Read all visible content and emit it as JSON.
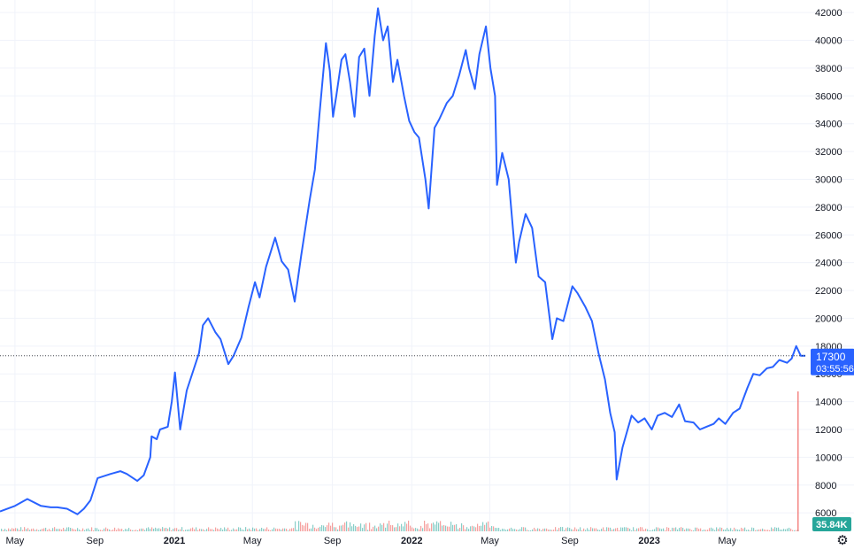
{
  "chart_data": {
    "type": "line",
    "title": "",
    "xlabel": "",
    "ylabel": "",
    "colors": {
      "line": "#2962ff",
      "grid": "#f0f3fa",
      "axis_text": "#131722",
      "volume_up": "#26a69a",
      "volume_down": "#ef5350",
      "volume_badge": "#26a69a"
    },
    "x_ticks": [
      {
        "label": "May",
        "date": "2020-05-01",
        "bold": false
      },
      {
        "label": "Sep",
        "date": "2020-09-01",
        "bold": false
      },
      {
        "label": "2021",
        "date": "2021-01-01",
        "bold": true
      },
      {
        "label": "May",
        "date": "2021-05-01",
        "bold": false
      },
      {
        "label": "Sep",
        "date": "2021-09-01",
        "bold": false
      },
      {
        "label": "2022",
        "date": "2022-01-01",
        "bold": true
      },
      {
        "label": "May",
        "date": "2022-05-01",
        "bold": false
      },
      {
        "label": "Sep",
        "date": "2022-09-01",
        "bold": false
      },
      {
        "label": "2023",
        "date": "2023-01-01",
        "bold": true
      },
      {
        "label": "May",
        "date": "2023-05-01",
        "bold": false
      }
    ],
    "x_range": [
      "2020-04-08",
      "2023-08-29"
    ],
    "y_ticks": [
      6000,
      8000,
      10000,
      12000,
      14000,
      16000,
      18000,
      20000,
      22000,
      24000,
      26000,
      28000,
      30000,
      32000,
      34000,
      36000,
      38000,
      40000,
      42000
    ],
    "ylim": [
      4800,
      42900
    ],
    "grid": true,
    "series": [
      {
        "x": [
          "2020-04-08",
          "2020-05-01",
          "2020-05-20",
          "2020-06-10",
          "2020-06-25",
          "2020-07-05",
          "2020-07-20",
          "2020-08-05",
          "2020-08-15",
          "2020-08-25",
          "2020-09-05",
          "2020-09-25",
          "2020-10-10",
          "2020-10-20",
          "2020-11-05",
          "2020-11-15",
          "2020-11-25",
          "2020-11-27",
          "2020-12-05",
          "2020-12-10",
          "2020-12-22",
          "2020-12-28",
          "2021-01-02",
          "2021-01-10",
          "2021-01-20",
          "2021-02-08",
          "2021-02-14",
          "2021-02-22",
          "2021-03-05",
          "2021-03-13",
          "2021-03-25",
          "2021-04-02",
          "2021-04-14",
          "2021-04-25",
          "2021-05-05",
          "2021-05-12",
          "2021-05-22",
          "2021-06-05",
          "2021-06-15",
          "2021-06-25",
          "2021-07-05",
          "2021-07-15",
          "2021-07-28",
          "2021-08-05",
          "2021-08-12",
          "2021-08-22",
          "2021-08-28",
          "2021-09-02",
          "2021-09-07",
          "2021-09-15",
          "2021-09-21",
          "2021-09-28",
          "2021-10-05",
          "2021-10-12",
          "2021-10-20",
          "2021-10-28",
          "2021-11-05",
          "2021-11-10",
          "2021-11-18",
          "2021-11-25",
          "2021-12-03",
          "2021-12-10",
          "2021-12-20",
          "2021-12-28",
          "2022-01-05",
          "2022-01-12",
          "2022-01-22",
          "2022-01-27",
          "2022-02-05",
          "2022-02-12",
          "2022-02-24",
          "2022-03-05",
          "2022-03-15",
          "2022-03-25",
          "2022-03-30",
          "2022-04-08",
          "2022-04-15",
          "2022-04-25",
          "2022-05-02",
          "2022-05-09",
          "2022-05-12",
          "2022-05-20",
          "2022-05-30",
          "2022-06-10",
          "2022-06-15",
          "2022-06-25",
          "2022-07-05",
          "2022-07-15",
          "2022-07-25",
          "2022-08-05",
          "2022-08-12",
          "2022-08-22",
          "2022-09-05",
          "2022-09-13",
          "2022-09-25",
          "2022-10-05",
          "2022-10-15",
          "2022-10-25",
          "2022-11-02",
          "2022-11-09",
          "2022-11-12",
          "2022-11-21",
          "2022-12-05",
          "2022-12-15",
          "2022-12-25",
          "2023-01-05",
          "2023-01-14",
          "2023-01-25",
          "2023-02-05",
          "2023-02-16",
          "2023-02-25",
          "2023-03-10",
          "2023-03-20",
          "2023-03-30",
          "2023-04-10",
          "2023-04-18",
          "2023-04-28",
          "2023-05-10",
          "2023-05-20",
          "2023-06-01",
          "2023-06-10",
          "2023-06-20",
          "2023-07-01",
          "2023-07-10",
          "2023-07-20",
          "2023-08-01",
          "2023-08-08",
          "2023-08-15",
          "2023-08-22",
          "2023-08-29"
        ],
        "y": [
          6100,
          6500,
          7000,
          6500,
          6400,
          6400,
          6300,
          5900,
          6300,
          6900,
          8500,
          8800,
          9000,
          8800,
          8300,
          8700,
          10000,
          11500,
          11300,
          12000,
          12200,
          14000,
          16100,
          12000,
          14800,
          17500,
          19500,
          20000,
          19000,
          18500,
          16700,
          17300,
          18600,
          20800,
          22600,
          21500,
          23700,
          25800,
          24100,
          23500,
          21200,
          24500,
          28500,
          30700,
          34600,
          39800,
          37800,
          34500,
          36000,
          38600,
          39000,
          37000,
          34500,
          38800,
          39400,
          36000,
          40300,
          42300,
          40000,
          41000,
          37000,
          38600,
          36000,
          34200,
          33400,
          33000,
          30000,
          27900,
          33700,
          34300,
          35500,
          36000,
          37500,
          39300,
          38000,
          36500,
          39000,
          41000,
          38000,
          36000,
          29600,
          31900,
          30000,
          24000,
          25500,
          27500,
          26500,
          23000,
          22600,
          18500,
          20000,
          19800,
          22300,
          21800,
          20800,
          19800,
          17500,
          15600,
          13200,
          11800,
          8400,
          10700,
          13000,
          12500,
          12800,
          12000,
          13000,
          13200,
          12900,
          13800,
          12600,
          12500,
          12000,
          12200,
          12400,
          12800,
          12400,
          13200,
          13500,
          15000,
          16000,
          15900,
          16400,
          16500,
          17000,
          16800,
          17100,
          18000,
          17300,
          17300
        ]
      }
    ],
    "last_value_label": "17300",
    "countdown_label": "03:55:56",
    "volume_label": "35.84K"
  }
}
